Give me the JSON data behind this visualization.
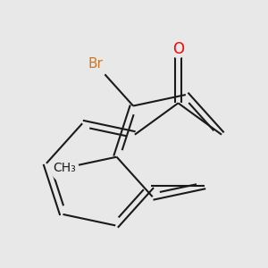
{
  "background_color": "#e8e8e8",
  "bond_color": "#1a1a1a",
  "bond_width": 1.5,
  "O_color": "#ff0000",
  "Br_color": "#cc7722",
  "C_color": "#1a1a1a",
  "label_fontsize": 11,
  "figsize": [
    3.0,
    3.0
  ],
  "dpi": 100,
  "xlim": [
    -3.8,
    3.8
  ],
  "ylim": [
    -3.8,
    3.8
  ]
}
